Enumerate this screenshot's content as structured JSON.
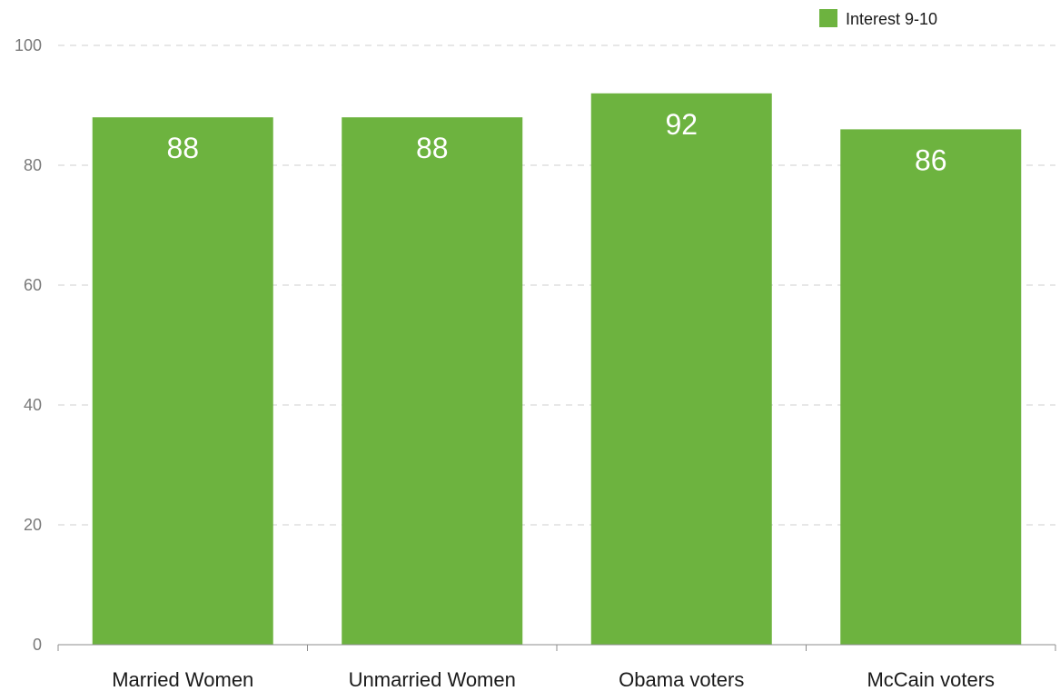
{
  "chart_data": {
    "type": "bar",
    "categories": [
      "Married Women",
      "Unmarried Women",
      "Obama voters",
      "McCain voters"
    ],
    "series": [
      {
        "name": "Interest 9-10",
        "values": [
          88,
          88,
          92,
          86
        ],
        "color": "#6db33f"
      }
    ],
    "data_labels": [
      "88",
      "88",
      "92",
      "86"
    ],
    "y_ticks": [
      0,
      20,
      40,
      60,
      80,
      100
    ],
    "y_tick_labels": [
      "0",
      "20",
      "40",
      "60",
      "80",
      "100"
    ],
    "ylim": [
      0,
      100
    ],
    "grid": true,
    "legend_position": "top-right",
    "title": "",
    "xlabel": "",
    "ylabel": ""
  }
}
